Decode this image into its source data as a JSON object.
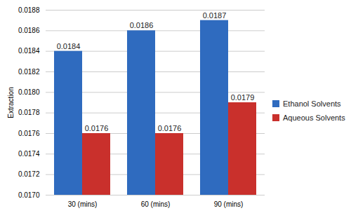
{
  "chart_data": {
    "type": "bar",
    "y_label": "Extraction",
    "categories": [
      "30 (mins)",
      "60 (mins)",
      "90 (mins)"
    ],
    "series": [
      {
        "name": "Ethanol Solvents",
        "color": "#2f6bbf",
        "values": [
          0.0184,
          0.0186,
          0.0187
        ]
      },
      {
        "name": "Aqueous Solvents",
        "color": "#c9302c",
        "values": [
          0.0176,
          0.0176,
          0.0179
        ]
      }
    ],
    "ylim": [
      0.017,
      0.0188
    ],
    "yticks": [
      {
        "value": 0.017,
        "label": "0.0170"
      },
      0.0172,
      0.0174,
      0.0176,
      0.0178,
      {
        "value": 0.018,
        "label": "0.0180"
      },
      0.0182,
      0.0184,
      0.0186,
      0.0188
    ],
    "grid": true,
    "legend": "right",
    "data_labels": true
  }
}
